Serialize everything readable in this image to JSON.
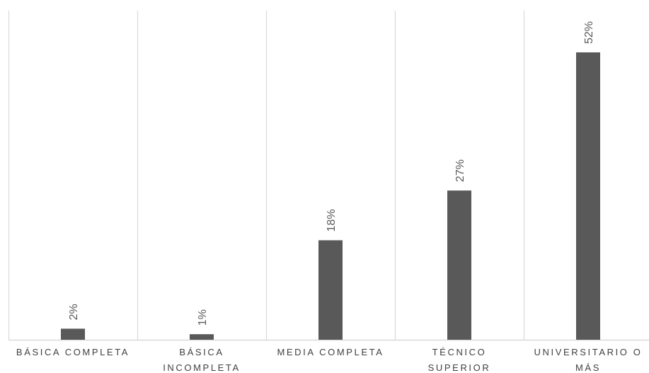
{
  "chart_data": {
    "type": "bar",
    "categories": [
      [
        "BÁSICA COMPLETA"
      ],
      [
        "BÁSICA",
        "INCOMPLETA"
      ],
      [
        "MEDIA COMPLETA"
      ],
      [
        "TÉCNICO",
        "SUPERIOR"
      ],
      [
        "UNIVERSITARIO O",
        "MÁS"
      ]
    ],
    "values": [
      2,
      1,
      18,
      27,
      52
    ],
    "data_labels": [
      "2%",
      "1%",
      "18%",
      "27%",
      "52%"
    ],
    "unit": "%",
    "ylim": [
      0,
      52
    ],
    "grid": "vertical category separators",
    "legend": "none",
    "colors": {
      "bar": "#595959",
      "gridline": "#d9d9d9",
      "axis": "#d9d9d9",
      "value_label": "#595959",
      "category_label": "#404040"
    }
  }
}
